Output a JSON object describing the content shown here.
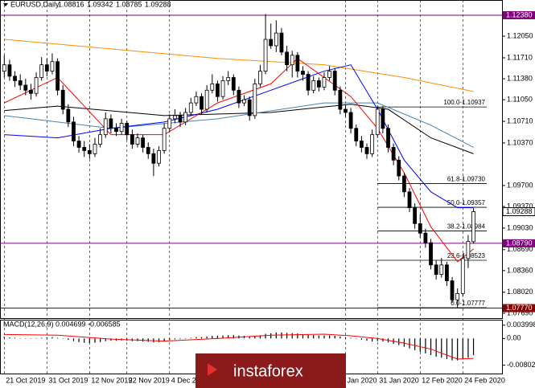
{
  "chart_data": {
    "type": "candlestick",
    "title": "EURUSD,Daily",
    "header_ohlc": [
      1.08816,
      1.09342,
      1.08785,
      1.09288
    ],
    "ylim": [
      1.076,
      1.1262
    ],
    "yticks": [
      {
        "value": 1.1205,
        "label": "1.12050"
      },
      {
        "value": 1.1171,
        "label": "1.11710"
      },
      {
        "value": 1.1138,
        "label": "1.11380"
      },
      {
        "value": 1.1105,
        "label": "1.11050"
      },
      {
        "value": 1.1071,
        "label": "1.10710"
      },
      {
        "value": 1.1037,
        "label": "1.10370"
      },
      {
        "value": 1.097,
        "label": "1.09700"
      },
      {
        "value": 1.0937,
        "label": "1.09370"
      },
      {
        "value": 1.0903,
        "label": "1.09030"
      },
      {
        "value": 1.0869,
        "label": "1.08690"
      },
      {
        "value": 1.0836,
        "label": "1.08360"
      },
      {
        "value": 1.0802,
        "label": "1.08020"
      },
      {
        "value": 1.0769,
        "label": "1.07690"
      }
    ],
    "xlim": [
      -0.8,
      93.5
    ],
    "xticks": [
      {
        "value": 0,
        "label": "21 Oct 2019"
      },
      {
        "value": 8,
        "label": "31 Oct 2019"
      },
      {
        "value": 16,
        "label": "12 Nov 2019"
      },
      {
        "value": 23,
        "label": "22 Nov 2019"
      },
      {
        "value": 31,
        "label": "4 Dec 2019"
      },
      {
        "value": 64,
        "label": "Jan 2020"
      },
      {
        "value": 70,
        "label": "31 Jan 2020"
      },
      {
        "value": 78,
        "label": "12 Feb 2020"
      },
      {
        "value": 86,
        "label": "24 Feb 2020"
      }
    ],
    "bull_color": "#ffffff",
    "bear_color": "#000000",
    "ohlc": [
      [
        1.115,
        1.1175,
        1.114,
        1.116
      ],
      [
        1.116,
        1.1168,
        1.1135,
        1.1142
      ],
      [
        1.1142,
        1.115,
        1.1125,
        1.1135
      ],
      [
        1.1135,
        1.1145,
        1.112,
        1.1128
      ],
      [
        1.1128,
        1.1138,
        1.1112,
        1.112
      ],
      [
        1.112,
        1.113,
        1.1105,
        1.1115
      ],
      [
        1.1115,
        1.1148,
        1.111,
        1.114
      ],
      [
        1.114,
        1.1172,
        1.1135,
        1.116
      ],
      [
        1.116,
        1.117,
        1.1142,
        1.115
      ],
      [
        1.115,
        1.1178,
        1.1145,
        1.1165
      ],
      [
        1.1165,
        1.117,
        1.1112,
        1.112
      ],
      [
        1.112,
        1.1128,
        1.1082,
        1.109
      ],
      [
        1.109,
        1.1098,
        1.1062,
        1.107
      ],
      [
        1.107,
        1.1078,
        1.1032,
        1.104
      ],
      [
        1.104,
        1.1048,
        1.1022,
        1.103
      ],
      [
        1.103,
        1.104,
        1.1015,
        1.1025
      ],
      [
        1.1025,
        1.1035,
        1.1012,
        1.102
      ],
      [
        1.102,
        1.1045,
        1.1015,
        1.1035
      ],
      [
        1.1035,
        1.106,
        1.103,
        1.105
      ],
      [
        1.105,
        1.1085,
        1.1045,
        1.1075
      ],
      [
        1.1075,
        1.1082,
        1.1052,
        1.106
      ],
      [
        1.106,
        1.1068,
        1.1048,
        1.1055
      ],
      [
        1.1055,
        1.1075,
        1.105,
        1.1068
      ],
      [
        1.1068,
        1.1072,
        1.1042,
        1.105
      ],
      [
        1.105,
        1.1058,
        1.1028,
        1.1035
      ],
      [
        1.1035,
        1.1052,
        1.103,
        1.1045
      ],
      [
        1.1045,
        1.105,
        1.1022,
        1.103
      ],
      [
        1.103,
        1.1038,
        1.1012,
        1.102
      ],
      [
        1.102,
        1.1028,
        1.0985,
        1.1005
      ],
      [
        1.1005,
        1.1032,
        1.1,
        1.1025
      ],
      [
        1.1025,
        1.1068,
        1.102,
        1.106
      ],
      [
        1.106,
        1.1082,
        1.1055,
        1.1075
      ],
      [
        1.1075,
        1.109,
        1.1068,
        1.108
      ],
      [
        1.108,
        1.1086,
        1.1062,
        1.107
      ],
      [
        1.107,
        1.1092,
        1.1065,
        1.1085
      ],
      [
        1.1085,
        1.1108,
        1.108,
        1.11
      ],
      [
        1.11,
        1.1118,
        1.1095,
        1.111
      ],
      [
        1.111,
        1.1115,
        1.1082,
        1.109
      ],
      [
        1.109,
        1.1128,
        1.1085,
        1.112
      ],
      [
        1.112,
        1.1145,
        1.1115,
        1.113
      ],
      [
        1.113,
        1.1135,
        1.1102,
        1.111
      ],
      [
        1.111,
        1.1142,
        1.1105,
        1.1135
      ],
      [
        1.1135,
        1.115,
        1.1128,
        1.114
      ],
      [
        1.114,
        1.1145,
        1.1112,
        1.112
      ],
      [
        1.112,
        1.1126,
        1.1092,
        1.11
      ],
      [
        1.11,
        1.1112,
        1.1095,
        1.1105
      ],
      [
        1.1105,
        1.111,
        1.1072,
        1.108
      ],
      [
        1.108,
        1.1138,
        1.1075,
        1.113
      ],
      [
        1.113,
        1.116,
        1.1125,
        1.115
      ],
      [
        1.115,
        1.124,
        1.1145,
        1.12
      ],
      [
        1.12,
        1.1225,
        1.1185,
        1.119
      ],
      [
        1.119,
        1.123,
        1.118,
        1.121
      ],
      [
        1.121,
        1.1218,
        1.1175,
        1.118
      ],
      [
        1.118,
        1.119,
        1.115,
        1.116
      ],
      [
        1.116,
        1.1182,
        1.114,
        1.1175
      ],
      [
        1.1175,
        1.118,
        1.114,
        1.115
      ],
      [
        1.115,
        1.1158,
        1.1135,
        1.1145
      ],
      [
        1.1145,
        1.115,
        1.1112,
        1.112
      ],
      [
        1.112,
        1.1142,
        1.1115,
        1.1135
      ],
      [
        1.1135,
        1.114,
        1.1118,
        1.1125
      ],
      [
        1.1125,
        1.1148,
        1.112,
        1.114
      ],
      [
        1.114,
        1.1158,
        1.1135,
        1.115
      ],
      [
        1.115,
        1.1155,
        1.1112,
        1.112
      ],
      [
        1.112,
        1.1126,
        1.1082,
        1.109
      ],
      [
        1.109,
        1.1098,
        1.1078,
        1.1085
      ],
      [
        1.1085,
        1.1092,
        1.1052,
        1.106
      ],
      [
        1.106,
        1.1066,
        1.1032,
        1.104
      ],
      [
        1.104,
        1.1048,
        1.1022,
        1.103
      ],
      [
        1.103,
        1.1036,
        1.1012,
        1.102
      ],
      [
        1.102,
        1.1058,
        1.1015,
        1.105
      ],
      [
        1.105,
        1.1096,
        1.1045,
        1.109
      ],
      [
        1.109,
        1.1095,
        1.1052,
        1.106
      ],
      [
        1.106,
        1.1066,
        1.1022,
        1.103
      ],
      [
        1.103,
        1.1036,
        1.1002,
        1.101
      ],
      [
        1.101,
        1.1016,
        1.0978,
        1.0985
      ],
      [
        1.0985,
        1.099,
        1.0952,
        1.096
      ],
      [
        1.096,
        1.0966,
        1.0928,
        1.0935
      ],
      [
        1.0935,
        1.0942,
        1.0902,
        1.091
      ],
      [
        1.091,
        1.0925,
        1.0888,
        1.0895
      ],
      [
        1.0895,
        1.0902,
        1.0872,
        1.088
      ],
      [
        1.088,
        1.0886,
        1.0838,
        1.0845
      ],
      [
        1.0845,
        1.0852,
        1.0822,
        1.083
      ],
      [
        1.083,
        1.0856,
        1.0825,
        1.0845
      ],
      [
        1.0845,
        1.085,
        1.0812,
        1.082
      ],
      [
        1.082,
        1.0826,
        1.0785,
        1.079
      ],
      [
        1.079,
        1.0808,
        1.0778,
        1.08
      ],
      [
        1.08,
        1.0862,
        1.0795,
        1.0855
      ],
      [
        1.0855,
        1.0892,
        1.084,
        1.0882
      ],
      [
        1.08816,
        1.09342,
        1.08785,
        1.09288
      ]
    ],
    "series": [
      {
        "color": "#ff8c00",
        "x": [
          0,
          20,
          40,
          60,
          75,
          88
        ],
        "values": [
          1.12,
          1.1185,
          1.117,
          1.116,
          1.114,
          1.1118
        ]
      },
      {
        "color": "#000000",
        "x": [
          0,
          10,
          30,
          50,
          65,
          72,
          80,
          88
        ],
        "values": [
          1.1088,
          1.1095,
          1.108,
          1.1085,
          1.1098,
          1.109,
          1.1045,
          1.102
        ]
      },
      {
        "color": "#4682b4",
        "x": [
          0,
          20,
          40,
          60,
          70,
          80,
          88
        ],
        "values": [
          1.108,
          1.106,
          1.1075,
          1.11,
          1.11,
          1.1065,
          1.103
        ]
      },
      {
        "color": "#0000ff",
        "x": [
          0,
          10,
          20,
          30,
          40,
          50,
          60,
          65,
          70,
          75,
          80,
          85,
          88
        ],
        "values": [
          1.105,
          1.1045,
          1.106,
          1.107,
          1.109,
          1.112,
          1.115,
          1.116,
          1.109,
          1.101,
          1.096,
          1.0935,
          1.0935
        ]
      },
      {
        "color": "#ff0000",
        "x": [
          0,
          10,
          20,
          30,
          40,
          50,
          55,
          60,
          65,
          70,
          75,
          80,
          85,
          88
        ],
        "values": [
          1.11,
          1.114,
          1.105,
          1.105,
          1.11,
          1.113,
          1.117,
          1.114,
          1.111,
          1.106,
          1.099,
          1.0905,
          1.085,
          1.087
        ]
      }
    ],
    "hlines": [
      {
        "value": 1.1238,
        "label": "1.12380",
        "color": "#800080"
      },
      {
        "value": 1.0879,
        "label": "1.08790",
        "color": "#800080"
      },
      {
        "value": 1.0777,
        "label": "1.07770",
        "color": "#8b0000"
      }
    ],
    "last_price": {
      "value": 1.09288,
      "label": "1.09288"
    },
    "fib_levels": [
      {
        "value": 1.10937,
        "label": "100.0-1.10937"
      },
      {
        "value": 1.0973,
        "label": "61.8-1.09730"
      },
      {
        "value": 1.09357,
        "label": "50.0-1.09357"
      },
      {
        "value": 1.08984,
        "label": "38.2-1.08984"
      },
      {
        "value": 1.08523,
        "label": "23.6-1.08523"
      },
      {
        "value": 1.07777,
        "label": "0.0-1.07777"
      }
    ],
    "macd": {
      "title": "MACD(12,26,9) 0.004699 -0.006585",
      "ylim": [
        -0.0108,
        0.0054
      ],
      "yticks": [
        0.003998,
        {
          "value": 0,
          "label": "0.00"
        },
        -0.008021
      ],
      "histogram": [
        0.0005,
        0.0003,
        0.0002,
        0.0001,
        0,
        -0.0001,
        0.0001,
        0.0002,
        0.0003,
        0.0004,
        0.0002,
        0,
        -0.0004,
        -0.0008,
        -0.0011,
        -0.0013,
        -0.0014,
        -0.0013,
        -0.0011,
        -0.0008,
        -0.0007,
        -0.0007,
        -0.0006,
        -0.0007,
        -0.0008,
        -0.0008,
        -0.0009,
        -0.001,
        -0.0012,
        -0.0011,
        -0.0008,
        -0.0005,
        -0.0003,
        -0.0002,
        0,
        0.0002,
        0.0004,
        0.0004,
        0.0006,
        0.0008,
        0.0008,
        0.0009,
        0.001,
        0.001,
        0.0009,
        0.0008,
        0.0006,
        0.0008,
        0.001,
        0.0014,
        0.0016,
        0.0018,
        0.0018,
        0.0017,
        0.0016,
        0.0015,
        0.0013,
        0.0011,
        0.001,
        0.0009,
        0.0009,
        0.0009,
        0.0008,
        0.0006,
        0.0004,
        0.0002,
        -0.0001,
        -0.0004,
        -0.0007,
        -0.0009,
        -0.0008,
        -0.0009,
        -0.0012,
        -0.0016,
        -0.002,
        -0.0025,
        -0.003,
        -0.0035,
        -0.004,
        -0.0045,
        -0.005,
        -0.0055,
        -0.0058,
        -0.0062,
        -0.0066,
        -0.0066,
        -0.0063,
        -0.0058,
        -0.005
      ],
      "signal": {
        "color": "#ff0000",
        "x": [
          0,
          10,
          20,
          30,
          40,
          50,
          60,
          65,
          70,
          75,
          80,
          85,
          88
        ],
        "values": [
          0.0012,
          0.001,
          -0.0002,
          -0.0008,
          0.0,
          0.001,
          0.0013,
          0.0008,
          0.0,
          -0.0014,
          -0.0032,
          -0.0062,
          -0.006
        ]
      }
    },
    "watermark": "instaforex"
  }
}
